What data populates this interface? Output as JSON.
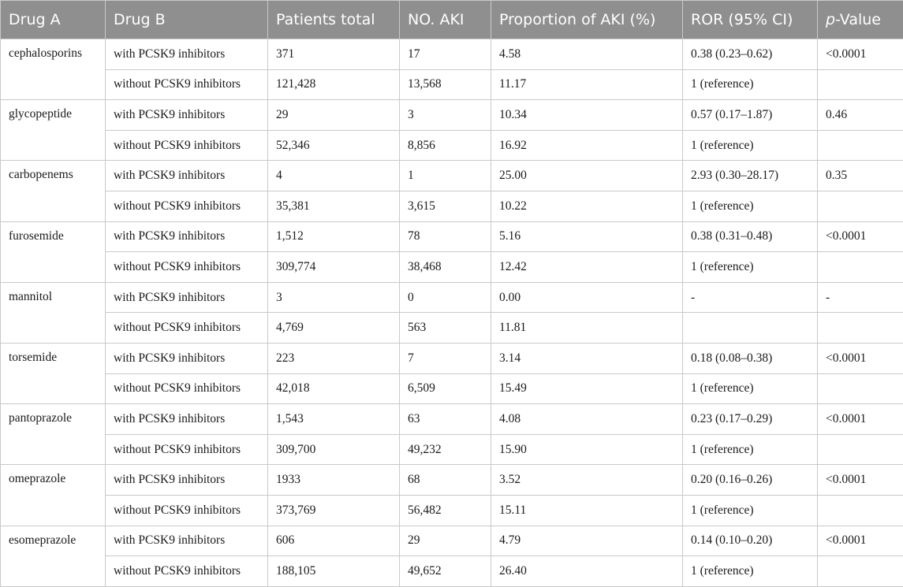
{
  "headers": {
    "drug_a": "Drug A",
    "drug_b": "Drug B",
    "patients_total": "Patients total",
    "no_aki": "NO. AKI",
    "proportion": "Proportion of AKI (%)",
    "ror": "ROR (95% CI)",
    "pvalue_p": "p",
    "pvalue_rest": "-Value"
  },
  "groups": [
    {
      "drug_a": "cephalosporins",
      "rows": [
        {
          "drug_b": "with PCSK9 inhibitors",
          "patients": "371",
          "aki": "17",
          "prop": "4.58",
          "ror": "0.38 (0.23–0.62)",
          "p": "<0.0001"
        },
        {
          "drug_b": "without PCSK9 inhibitors",
          "patients": "121,428",
          "aki": "13,568",
          "prop": "11.17",
          "ror": "1 (reference)",
          "p": ""
        }
      ]
    },
    {
      "drug_a": "glycopeptide",
      "rows": [
        {
          "drug_b": "with PCSK9 inhibitors",
          "patients": "29",
          "aki": "3",
          "prop": "10.34",
          "ror": "0.57 (0.17–1.87)",
          "p": "0.46"
        },
        {
          "drug_b": "without PCSK9 inhibitors",
          "patients": "52,346",
          "aki": "8,856",
          "prop": "16.92",
          "ror": "1 (reference)",
          "p": ""
        }
      ]
    },
    {
      "drug_a": "carbopenems",
      "rows": [
        {
          "drug_b": "with PCSK9 inhibitors",
          "patients": "4",
          "aki": "1",
          "prop": "25.00",
          "ror": "2.93 (0.30–28.17)",
          "p": "0.35"
        },
        {
          "drug_b": "without PCSK9 inhibitors",
          "patients": "35,381",
          "aki": "3,615",
          "prop": "10.22",
          "ror": "1 (reference)",
          "p": ""
        }
      ]
    },
    {
      "drug_a": "furosemide",
      "rows": [
        {
          "drug_b": "with PCSK9 inhibitors",
          "patients": "1,512",
          "aki": "78",
          "prop": "5.16",
          "ror": "0.38 (0.31–0.48)",
          "p": "<0.0001"
        },
        {
          "drug_b": "without PCSK9 inhibitors",
          "patients": "309,774",
          "aki": "38,468",
          "prop": "12.42",
          "ror": "1 (reference)",
          "p": ""
        }
      ]
    },
    {
      "drug_a": "mannitol",
      "rows": [
        {
          "drug_b": "with PCSK9 inhibitors",
          "patients": "3",
          "aki": "0",
          "prop": "0.00",
          "ror": "-",
          "p": "-"
        },
        {
          "drug_b": "without PCSK9 inhibitors",
          "patients": "4,769",
          "aki": "563",
          "prop": "11.81",
          "ror": "",
          "p": ""
        }
      ]
    },
    {
      "drug_a": "torsemide",
      "rows": [
        {
          "drug_b": "with PCSK9 inhibitors",
          "patients": "223",
          "aki": "7",
          "prop": "3.14",
          "ror": "0.18 (0.08–0.38)",
          "p": "<0.0001"
        },
        {
          "drug_b": "without PCSK9 inhibitors",
          "patients": "42,018",
          "aki": "6,509",
          "prop": "15.49",
          "ror": "1 (reference)",
          "p": ""
        }
      ]
    },
    {
      "drug_a": "pantoprazole",
      "rows": [
        {
          "drug_b": "with PCSK9 inhibitors",
          "patients": "1,543",
          "aki": "63",
          "prop": "4.08",
          "ror": "0.23 (0.17–0.29)",
          "p": "<0.0001"
        },
        {
          "drug_b": "without PCSK9 inhibitors",
          "patients": "309,700",
          "aki": "49,232",
          "prop": "15.90",
          "ror": "1 (reference)",
          "p": ""
        }
      ]
    },
    {
      "drug_a": "omeprazole",
      "rows": [
        {
          "drug_b": "with PCSK9 inhibitors",
          "patients": "1933",
          "aki": "68",
          "prop": "3.52",
          "ror": "0.20 (0.16–0.26)",
          "p": "<0.0001"
        },
        {
          "drug_b": "without PCSK9 inhibitors",
          "patients": "373,769",
          "aki": "56,482",
          "prop": "15.11",
          "ror": "1 (reference)",
          "p": ""
        }
      ]
    },
    {
      "drug_a": "esomeprazole",
      "rows": [
        {
          "drug_b": "with PCSK9 inhibitors",
          "patients": "606",
          "aki": "29",
          "prop": "4.79",
          "ror": "0.14 (0.10–0.20)",
          "p": "<0.0001"
        },
        {
          "drug_b": "without PCSK9 inhibitors",
          "patients": "188,105",
          "aki": "49,652",
          "prop": "26.40",
          "ror": "1 (reference)",
          "p": ""
        }
      ]
    }
  ]
}
